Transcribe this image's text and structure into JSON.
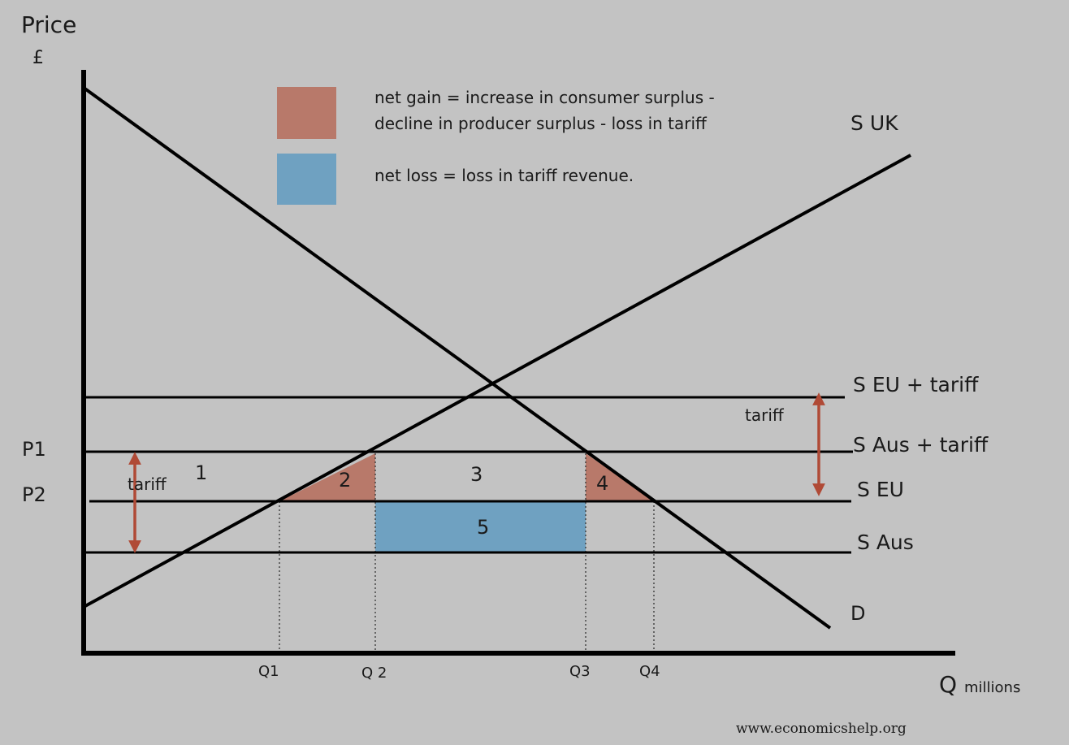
{
  "axes": {
    "y_title": "Price",
    "y_unit": "£",
    "x_title": "Q",
    "x_unit": "millions",
    "x_ticks": [
      "Q1",
      "Q 2",
      "Q3",
      "Q4"
    ],
    "y_ticks": [
      "P1",
      "P2"
    ]
  },
  "legend": {
    "gain_line1": "net gain = increase in consumer surplus -",
    "gain_line2": "decline in producer surplus - loss in tariff",
    "loss_text": "net loss = loss in tariff revenue.",
    "gain_color": "#b8796a",
    "loss_color": "#6fa1c1"
  },
  "curves": {
    "supply_uk": "S UK",
    "demand": "D",
    "s_eu_tariff": "S EU + tariff",
    "s_aus_tariff": "S Aus + tariff",
    "s_eu": "S EU",
    "s_aus": "S Aus"
  },
  "areas": {
    "a1": "1",
    "a2": "2",
    "a3": "3",
    "a4": "4",
    "a5": "5"
  },
  "annotations": {
    "tariff_left": "tariff",
    "tariff_right": "tariff",
    "arrow_color": "#b04a36"
  },
  "source": "www.economicshelp.org"
}
